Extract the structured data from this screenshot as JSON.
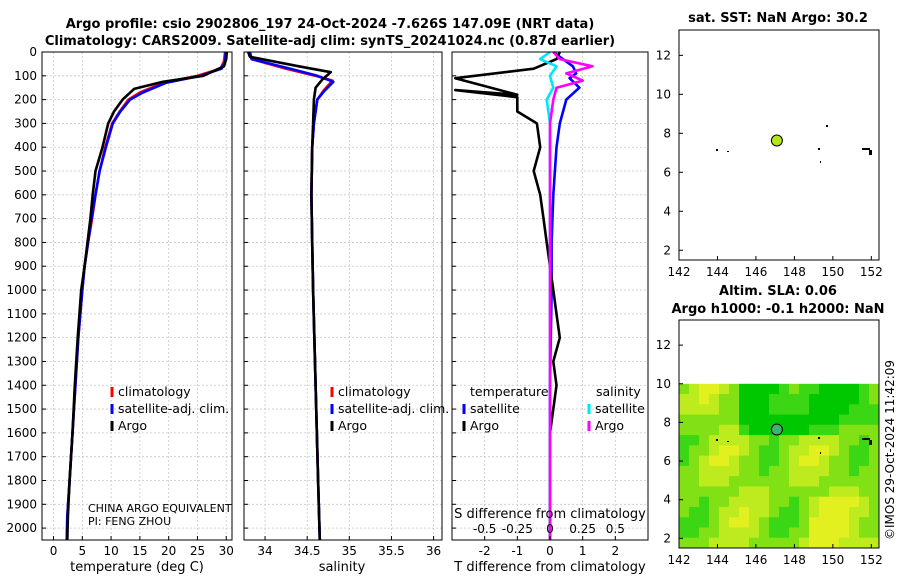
{
  "title_line1": "Argo profile: csio 2902806_197 24-Oct-2024 -7.626S 147.09E (NRT data)",
  "title_line2": "Climatology: CARS2009. Satellite-adj clim: synTS_20241024.nc (0.87d earlier)",
  "watermark": "©IMOS 29-Oct-2024 11:42:09",
  "credit_line1": "CHINA ARGO EQUIVALENT",
  "credit_line2": "PI: FENG ZHOU",
  "colors": {
    "climatology": "#ff0000",
    "satellite": "#0000ff",
    "argo": "#000000",
    "sat_diff": "#00e5ff",
    "argo_sdiff": "#ff00ff"
  },
  "chart_data": [
    {
      "type": "line",
      "name": "temperature-profile",
      "xlabel": "temperature (deg C)",
      "xlim": [
        -2,
        31
      ],
      "x_ticks": [
        0,
        5,
        10,
        15,
        20,
        25,
        30
      ],
      "ylim": [
        0,
        2050
      ],
      "y_ticks": [
        0,
        100,
        200,
        300,
        400,
        500,
        600,
        700,
        800,
        900,
        1000,
        1100,
        1200,
        1300,
        1400,
        1500,
        1600,
        1700,
        1800,
        1900,
        2000
      ],
      "legend": [
        "climatology",
        "satellite-adj. clim.",
        "Argo"
      ],
      "series": [
        {
          "name": "climatology",
          "color": "#ff0000",
          "points": [
            [
              29.8,
              0
            ],
            [
              29.6,
              40
            ],
            [
              29.0,
              70
            ],
            [
              25,
              100
            ],
            [
              19,
              130
            ],
            [
              15,
              170
            ],
            [
              13,
              200
            ],
            [
              11.5,
              250
            ],
            [
              10.2,
              300
            ],
            [
              9,
              400
            ],
            [
              8,
              500
            ],
            [
              7.3,
              600
            ],
            [
              6.7,
              700
            ],
            [
              6,
              800
            ],
            [
              5.4,
              900
            ],
            [
              5,
              1000
            ],
            [
              4.3,
              1200
            ],
            [
              3.8,
              1400
            ],
            [
              3.3,
              1600
            ],
            [
              2.8,
              1800
            ],
            [
              2.4,
              1950
            ],
            [
              2.3,
              2050
            ]
          ]
        },
        {
          "name": "satellite-adj. clim.",
          "color": "#0000ff",
          "points": [
            [
              29.9,
              0
            ],
            [
              29.8,
              40
            ],
            [
              29.2,
              70
            ],
            [
              25.5,
              100
            ],
            [
              19.5,
              130
            ],
            [
              15.5,
              170
            ],
            [
              13.3,
              200
            ],
            [
              11.6,
              250
            ],
            [
              10.3,
              300
            ],
            [
              9.1,
              400
            ],
            [
              8,
              500
            ],
            [
              7.3,
              600
            ],
            [
              6.6,
              700
            ],
            [
              6,
              800
            ],
            [
              5.4,
              900
            ],
            [
              5,
              1000
            ],
            [
              4.3,
              1200
            ],
            [
              3.8,
              1400
            ],
            [
              3.3,
              1600
            ],
            [
              2.8,
              1800
            ],
            [
              2.4,
              1950
            ],
            [
              2.3,
              2050
            ]
          ]
        },
        {
          "name": "Argo",
          "color": "#000000",
          "points": [
            [
              30.1,
              0
            ],
            [
              30.0,
              30
            ],
            [
              29.6,
              60
            ],
            [
              26,
              100
            ],
            [
              19,
              125
            ],
            [
              14,
              155
            ],
            [
              12,
              200
            ],
            [
              10.5,
              250
            ],
            [
              9.5,
              300
            ],
            [
              8.5,
              400
            ],
            [
              7.3,
              500
            ],
            [
              6.8,
              600
            ],
            [
              6.4,
              700
            ],
            [
              5.9,
              800
            ],
            [
              5.4,
              900
            ],
            [
              4.8,
              1000
            ],
            [
              4.2,
              1200
            ],
            [
              3.7,
              1400
            ],
            [
              3.3,
              1600
            ],
            [
              2.8,
              1800
            ],
            [
              2.5,
              1950
            ],
            [
              2.4,
              2050
            ]
          ]
        }
      ]
    },
    {
      "type": "line",
      "name": "salinity-profile",
      "xlabel": "salinity",
      "xlim": [
        33.75,
        36.1
      ],
      "x_ticks": [
        34,
        34.5,
        35,
        35.5,
        36
      ],
      "x_tick_labels": [
        "34",
        "34.5",
        "35",
        "35.5",
        "36"
      ],
      "ylim": [
        0,
        2050
      ],
      "legend": [
        "climatology",
        "satellite-adj. clim.",
        "Argo"
      ],
      "series": [
        {
          "name": "climatology",
          "color": "#ff0000",
          "points": [
            [
              33.82,
              0
            ],
            [
              33.84,
              30
            ],
            [
              34.25,
              70
            ],
            [
              34.6,
              100
            ],
            [
              34.8,
              120
            ],
            [
              34.7,
              160
            ],
            [
              34.62,
              200
            ],
            [
              34.58,
              300
            ],
            [
              34.56,
              400
            ],
            [
              34.55,
              600
            ],
            [
              34.56,
              800
            ],
            [
              34.57,
              1000
            ],
            [
              34.6,
              1400
            ],
            [
              34.63,
              1800
            ],
            [
              34.65,
              2050
            ]
          ]
        },
        {
          "name": "satellite-adj. clim.",
          "color": "#0000ff",
          "points": [
            [
              33.82,
              0
            ],
            [
              33.84,
              30
            ],
            [
              34.3,
              70
            ],
            [
              34.62,
              100
            ],
            [
              34.81,
              125
            ],
            [
              34.7,
              165
            ],
            [
              34.62,
              200
            ],
            [
              34.58,
              300
            ],
            [
              34.56,
              400
            ],
            [
              34.55,
              600
            ],
            [
              34.56,
              800
            ],
            [
              34.57,
              1000
            ],
            [
              34.6,
              1400
            ],
            [
              34.63,
              1800
            ],
            [
              34.65,
              2050
            ]
          ]
        },
        {
          "name": "Argo",
          "color": "#000000",
          "points": [
            [
              33.8,
              0
            ],
            [
              33.82,
              20
            ],
            [
              34.4,
              60
            ],
            [
              34.78,
              85
            ],
            [
              34.68,
              115
            ],
            [
              34.6,
              150
            ],
            [
              34.58,
              200
            ],
            [
              34.57,
              300
            ],
            [
              34.56,
              400
            ],
            [
              34.55,
              600
            ],
            [
              34.56,
              800
            ],
            [
              34.57,
              1000
            ],
            [
              34.6,
              1400
            ],
            [
              34.63,
              1800
            ],
            [
              34.65,
              2050
            ]
          ]
        }
      ]
    },
    {
      "type": "line",
      "name": "difference-profile",
      "xlabel": "T difference from climatology",
      "top_xlabel": "S difference from climatology",
      "xlim": [
        -3,
        3
      ],
      "x_ticks": [
        -2,
        -1,
        0,
        1,
        2
      ],
      "top_ticks": [
        -0.5,
        -0.25,
        0,
        0.25,
        0.5
      ],
      "top_tick_labels": [
        "-0.5",
        "-0.25",
        "0",
        "0.25",
        "0.5"
      ],
      "top_tick_positions": [
        -2,
        -1,
        0,
        1,
        2
      ],
      "legend_temperature_title": "temperature",
      "legend_salinity_title": "salinity",
      "legend_temperature": [
        "satellite",
        "Argo"
      ],
      "legend_salinity": [
        "satellite",
        "Argo"
      ],
      "series": [
        {
          "name": "T satellite",
          "color": "#0000ff",
          "points": [
            [
              0.1,
              0
            ],
            [
              0.3,
              20
            ],
            [
              0.7,
              60
            ],
            [
              0.8,
              90
            ],
            [
              0.6,
              110
            ],
            [
              0.9,
              150
            ],
            [
              0.5,
              200
            ],
            [
              0.3,
              300
            ],
            [
              0.2,
              400
            ],
            [
              0.1,
              600
            ],
            [
              0.05,
              800
            ],
            [
              0.05,
              1000
            ],
            [
              0,
              1400
            ],
            [
              0,
              2050
            ]
          ]
        },
        {
          "name": "T Argo",
          "color": "#000000",
          "points": [
            [
              0.3,
              0
            ],
            [
              0.2,
              30
            ],
            [
              -0.5,
              70
            ],
            [
              -2.9,
              110
            ],
            [
              -1.0,
              180
            ],
            [
              -2.9,
              160
            ],
            [
              -1.0,
              190
            ],
            [
              -1,
              250
            ],
            [
              -0.4,
              300
            ],
            [
              -0.3,
              400
            ],
            [
              -0.5,
              500
            ],
            [
              -0.3,
              600
            ],
            [
              -0.2,
              700
            ],
            [
              -0.1,
              800
            ],
            [
              0,
              900
            ],
            [
              0.1,
              1000
            ],
            [
              0.2,
              1100
            ],
            [
              0.3,
              1200
            ],
            [
              0.1,
              1300
            ],
            [
              0.2,
              1400
            ],
            [
              0.1,
              1500
            ],
            [
              0,
              1600
            ],
            [
              0,
              2050
            ]
          ]
        },
        {
          "name": "S satellite",
          "color": "#00e5ff",
          "points": [
            [
              0,
              0
            ],
            [
              -0.3,
              30
            ],
            [
              0.2,
              60
            ],
            [
              0.0,
              100
            ],
            [
              0.1,
              150
            ],
            [
              -0.1,
              200
            ],
            [
              0,
              300
            ],
            [
              0,
              500
            ],
            [
              0,
              1000
            ],
            [
              0,
              2050
            ]
          ]
        },
        {
          "name": "S Argo",
          "color": "#ff00ff",
          "points": [
            [
              0.1,
              0
            ],
            [
              0.3,
              30
            ],
            [
              1.3,
              60
            ],
            [
              0.5,
              90
            ],
            [
              1.0,
              120
            ],
            [
              0.2,
              150
            ],
            [
              0.1,
              200
            ],
            [
              0,
              300
            ],
            [
              0,
              600
            ],
            [
              0,
              2050
            ]
          ]
        }
      ]
    },
    {
      "type": "scatter",
      "name": "sst-map",
      "title": "sat. SST: NaN Argo: 30.2",
      "xlim": [
        142,
        152.4
      ],
      "ylim": [
        1.5,
        13.3
      ],
      "x_ticks": [
        142,
        144,
        146,
        148,
        150,
        152
      ],
      "y_ticks": [
        2,
        4,
        6,
        8,
        10,
        12
      ],
      "float_position": [
        147.09,
        7.63
      ],
      "float_color": "#b5e61d"
    },
    {
      "type": "heatmap",
      "name": "sla-map",
      "title_line1": "Altim. SLA: 0.06",
      "title_line2": "Argo h1000: -0.1 h2000: NaN",
      "xlim": [
        142,
        152.4
      ],
      "ylim": [
        1.5,
        13.3
      ],
      "x_ticks": [
        142,
        144,
        146,
        148,
        150,
        152
      ],
      "y_ticks": [
        2,
        4,
        6,
        8,
        10,
        12
      ],
      "data_top_lat": 10,
      "float_position": [
        147.09,
        7.63
      ],
      "float_color": "#3cb371"
    }
  ]
}
